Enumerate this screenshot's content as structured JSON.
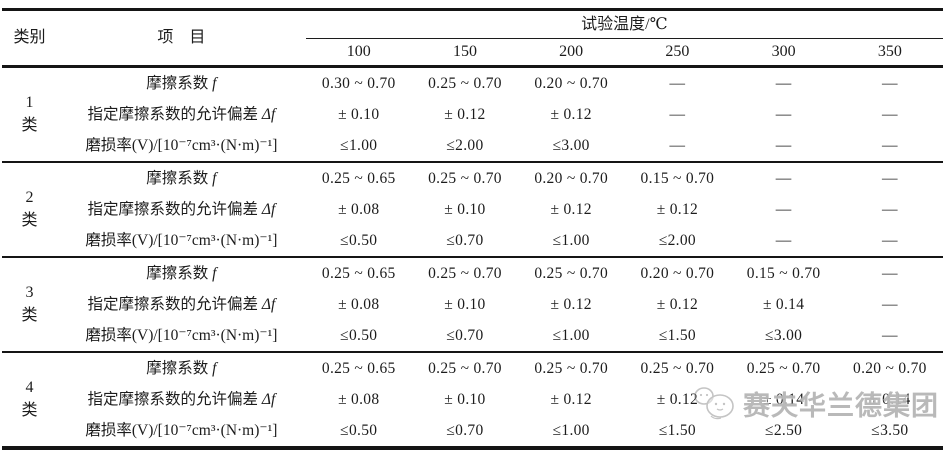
{
  "table": {
    "header": {
      "category": "类别",
      "item": "项　目",
      "temp_group": "试验温度/℃",
      "temps": [
        "100",
        "150",
        "200",
        "250",
        "300",
        "350"
      ]
    },
    "groups": [
      {
        "category_num": "1",
        "category_suffix": "类",
        "rows": [
          {
            "label": "摩擦系数",
            "label_italic": "f",
            "values": [
              "0.30 ~ 0.70",
              "0.25 ~ 0.70",
              "0.20 ~ 0.70",
              "—",
              "—",
              "—"
            ]
          },
          {
            "label": "指定摩擦系数的允许偏差",
            "label_italic": "Δf",
            "values": [
              "± 0.10",
              "± 0.12",
              "± 0.12",
              "—",
              "—",
              "—"
            ]
          },
          {
            "label": "磨损率(V)/[10⁻⁷cm³·(N·m)⁻¹]",
            "label_italic": "",
            "values": [
              "≤1.00",
              "≤2.00",
              "≤3.00",
              "—",
              "—",
              "—"
            ]
          }
        ]
      },
      {
        "category_num": "2",
        "category_suffix": "类",
        "rows": [
          {
            "label": "摩擦系数",
            "label_italic": "f",
            "values": [
              "0.25 ~ 0.65",
              "0.25 ~ 0.70",
              "0.20 ~ 0.70",
              "0.15 ~ 0.70",
              "—",
              "—"
            ]
          },
          {
            "label": "指定摩擦系数的允许偏差",
            "label_italic": "Δf",
            "values": [
              "± 0.08",
              "± 0.10",
              "± 0.12",
              "± 0.12",
              "—",
              "—"
            ]
          },
          {
            "label": "磨损率(V)/[10⁻⁷cm³·(N·m)⁻¹]",
            "label_italic": "",
            "values": [
              "≤0.50",
              "≤0.70",
              "≤1.00",
              "≤2.00",
              "—",
              "—"
            ]
          }
        ]
      },
      {
        "category_num": "3",
        "category_suffix": "类",
        "rows": [
          {
            "label": "摩擦系数",
            "label_italic": "f",
            "values": [
              "0.25 ~ 0.65",
              "0.25 ~ 0.70",
              "0.25 ~ 0.70",
              "0.20 ~ 0.70",
              "0.15 ~ 0.70",
              "—"
            ]
          },
          {
            "label": "指定摩擦系数的允许偏差",
            "label_italic": "Δf",
            "values": [
              "± 0.08",
              "± 0.10",
              "± 0.12",
              "± 0.12",
              "± 0.14",
              "—"
            ]
          },
          {
            "label": "磨损率(V)/[10⁻⁷cm³·(N·m)⁻¹]",
            "label_italic": "",
            "values": [
              "≤0.50",
              "≤0.70",
              "≤1.00",
              "≤1.50",
              "≤3.00",
              "—"
            ]
          }
        ]
      },
      {
        "category_num": "4",
        "category_suffix": "类",
        "rows": [
          {
            "label": "摩擦系数",
            "label_italic": "f",
            "values": [
              "0.25 ~ 0.65",
              "0.25 ~ 0.70",
              "0.25 ~ 0.70",
              "0.25 ~ 0.70",
              "0.25 ~ 0.70",
              "0.20 ~ 0.70"
            ]
          },
          {
            "label": "指定摩擦系数的允许偏差",
            "label_italic": "Δf",
            "values": [
              "± 0.08",
              "± 0.10",
              "± 0.12",
              "± 0.12",
              "± 0.14",
              "± 0.14"
            ]
          },
          {
            "label": "磨损率(V)/[10⁻⁷cm³·(N·m)⁻¹]",
            "label_italic": "",
            "values": [
              "≤0.50",
              "≤0.70",
              "≤1.00",
              "≤1.50",
              "≤2.50",
              "≤3.50"
            ]
          }
        ]
      }
    ]
  },
  "watermark": {
    "text": "赛夫华兰德集团",
    "icon": "mascot-icon",
    "color": "#808080"
  },
  "colors": {
    "border": "#151515",
    "text": "#1c1c1c",
    "background": "#ffffff"
  }
}
